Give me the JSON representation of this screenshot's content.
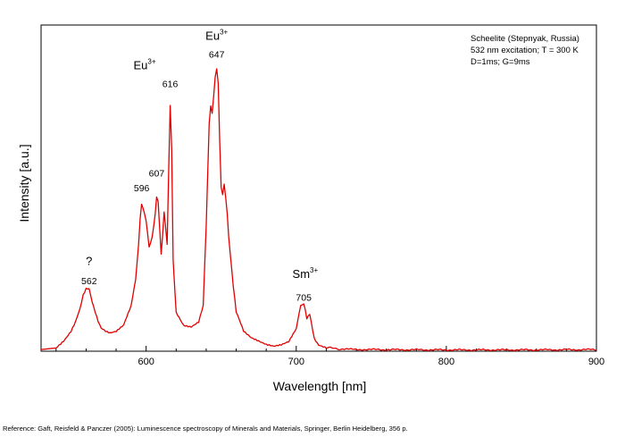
{
  "chart_data": {
    "type": "line",
    "title": "",
    "xlabel": "Wavelength [nm]",
    "ylabel": "Intensity [a.u.]",
    "xlim": [
      530,
      900
    ],
    "ylim": [
      0,
      1.0
    ],
    "x_ticks": [
      600,
      700,
      800,
      900
    ],
    "grid": false,
    "line_color": "#e00000",
    "info_box": {
      "line1": "Scheelite (Stepnyak, Russia)",
      "line2": "532 nm excitation; T = 300 K",
      "line3": "D=1ms; G=9ms"
    },
    "annotations": [
      {
        "base": "Eu",
        "sup": "3+",
        "x": 599,
        "y": 0.865
      },
      {
        "base": "Eu",
        "sup": "3+",
        "x": 647,
        "y": 0.955
      },
      {
        "base": "Sm",
        "sup": "3+",
        "x": 706,
        "y": 0.225
      },
      {
        "base": "?",
        "sup": "",
        "x": 562,
        "y": 0.265
      }
    ],
    "peak_labels": [
      {
        "text": "562",
        "x": 562,
        "y": 0.205
      },
      {
        "text": "596",
        "x": 597,
        "y": 0.49
      },
      {
        "text": "607",
        "x": 607,
        "y": 0.535
      },
      {
        "text": "616",
        "x": 616,
        "y": 0.81
      },
      {
        "text": "647",
        "x": 647,
        "y": 0.9
      },
      {
        "text": "705",
        "x": 705,
        "y": 0.155
      }
    ],
    "series": [
      {
        "x": [
          530,
          540,
          545,
          550,
          553,
          556,
          558,
          560,
          562,
          564,
          566,
          568,
          570,
          573,
          576,
          580,
          585,
          590,
          593,
          595,
          596,
          597,
          598,
          600,
          602,
          604,
          606,
          607,
          608,
          609,
          610,
          611,
          612,
          613,
          614,
          615,
          616,
          617,
          618,
          620,
          625,
          630,
          635,
          638,
          640,
          642,
          643,
          644,
          645,
          646,
          647,
          648,
          649,
          650,
          651,
          652,
          653,
          654,
          655,
          656,
          658,
          660,
          665,
          670,
          675,
          680,
          685,
          690,
          695,
          700,
          702,
          703,
          704,
          705,
          706,
          707,
          708,
          709,
          710,
          712,
          715,
          720,
          730,
          750,
          800,
          850,
          900
        ],
        "y": [
          0.005,
          0.01,
          0.03,
          0.06,
          0.09,
          0.13,
          0.17,
          0.19,
          0.19,
          0.15,
          0.12,
          0.09,
          0.07,
          0.06,
          0.055,
          0.06,
          0.08,
          0.14,
          0.22,
          0.33,
          0.41,
          0.45,
          0.44,
          0.4,
          0.32,
          0.35,
          0.42,
          0.475,
          0.46,
          0.38,
          0.3,
          0.36,
          0.43,
          0.38,
          0.33,
          0.55,
          0.755,
          0.62,
          0.28,
          0.12,
          0.08,
          0.075,
          0.09,
          0.14,
          0.38,
          0.7,
          0.75,
          0.73,
          0.78,
          0.84,
          0.865,
          0.82,
          0.65,
          0.5,
          0.48,
          0.51,
          0.47,
          0.42,
          0.35,
          0.3,
          0.2,
          0.12,
          0.06,
          0.04,
          0.03,
          0.02,
          0.015,
          0.02,
          0.03,
          0.07,
          0.12,
          0.14,
          0.145,
          0.145,
          0.13,
          0.1,
          0.11,
          0.115,
          0.09,
          0.04,
          0.02,
          0.012,
          0.006,
          0.005,
          0.004,
          0.004,
          0.005
        ]
      }
    ]
  },
  "reference_text": "Reference: Gaft, Reisfeld & Panczer (2005): Luminescence spectroscopy of Minerals and Materials, Springer, Berlin Heidelberg, 356 p."
}
